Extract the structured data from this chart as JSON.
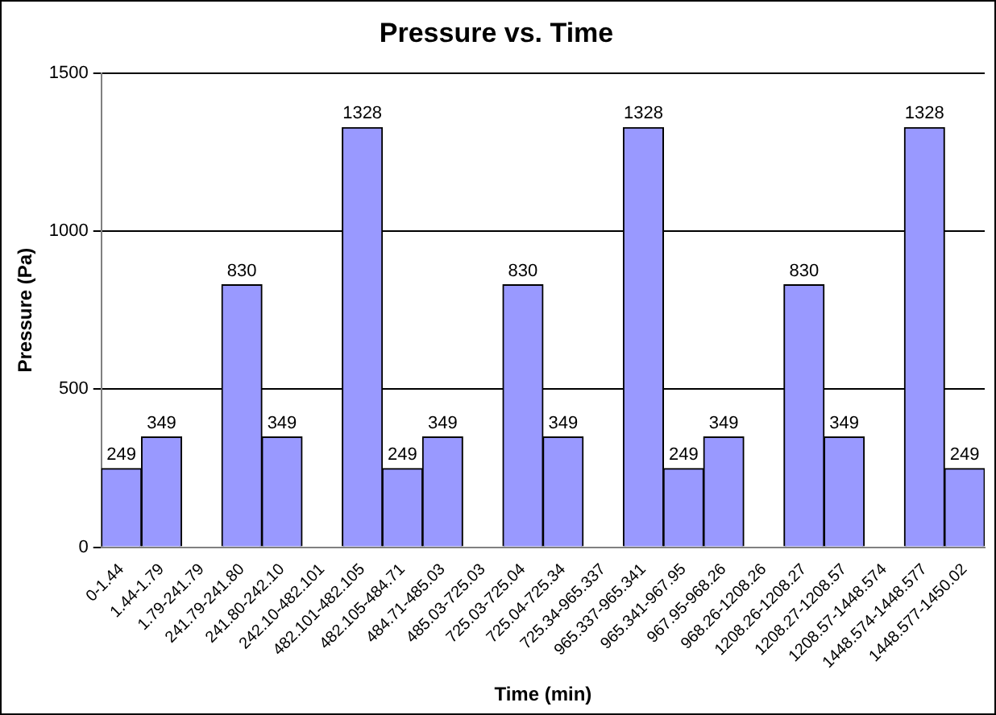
{
  "chart_data": {
    "type": "bar",
    "title": "Pressure vs. Time",
    "xlabel": "Time (min)",
    "ylabel": "Pressure (Pa)",
    "categories": [
      "0-1.44",
      "1.44-1.79",
      "1.79-241.79",
      "241.79-241.80",
      "241.80-242.10",
      "242.10-482.101",
      "482.101-482.105",
      "482.105-484.71",
      "484.71-485.03",
      "485.03-725.03",
      "725.03-725.04",
      "725.04-725.34",
      "725.34-965.337",
      "965.337-965.341",
      "965.341-967.95",
      "967.95-968.26",
      "968.26-1208.26",
      "1208.26-1208.27",
      "1208.27-1208.57",
      "1208.57-1448.574",
      "1448.574-1448.577",
      "1448.577-1450.02"
    ],
    "values": [
      249,
      349,
      null,
      830,
      349,
      null,
      1328,
      249,
      349,
      null,
      830,
      349,
      null,
      1328,
      249,
      349,
      null,
      830,
      349,
      null,
      1328,
      249
    ],
    "color": "#9999ff",
    "ylim": [
      0,
      1500
    ],
    "yticks": [
      0,
      500,
      1000,
      1500
    ],
    "grid": "y",
    "data_labels": true,
    "legend": false
  }
}
